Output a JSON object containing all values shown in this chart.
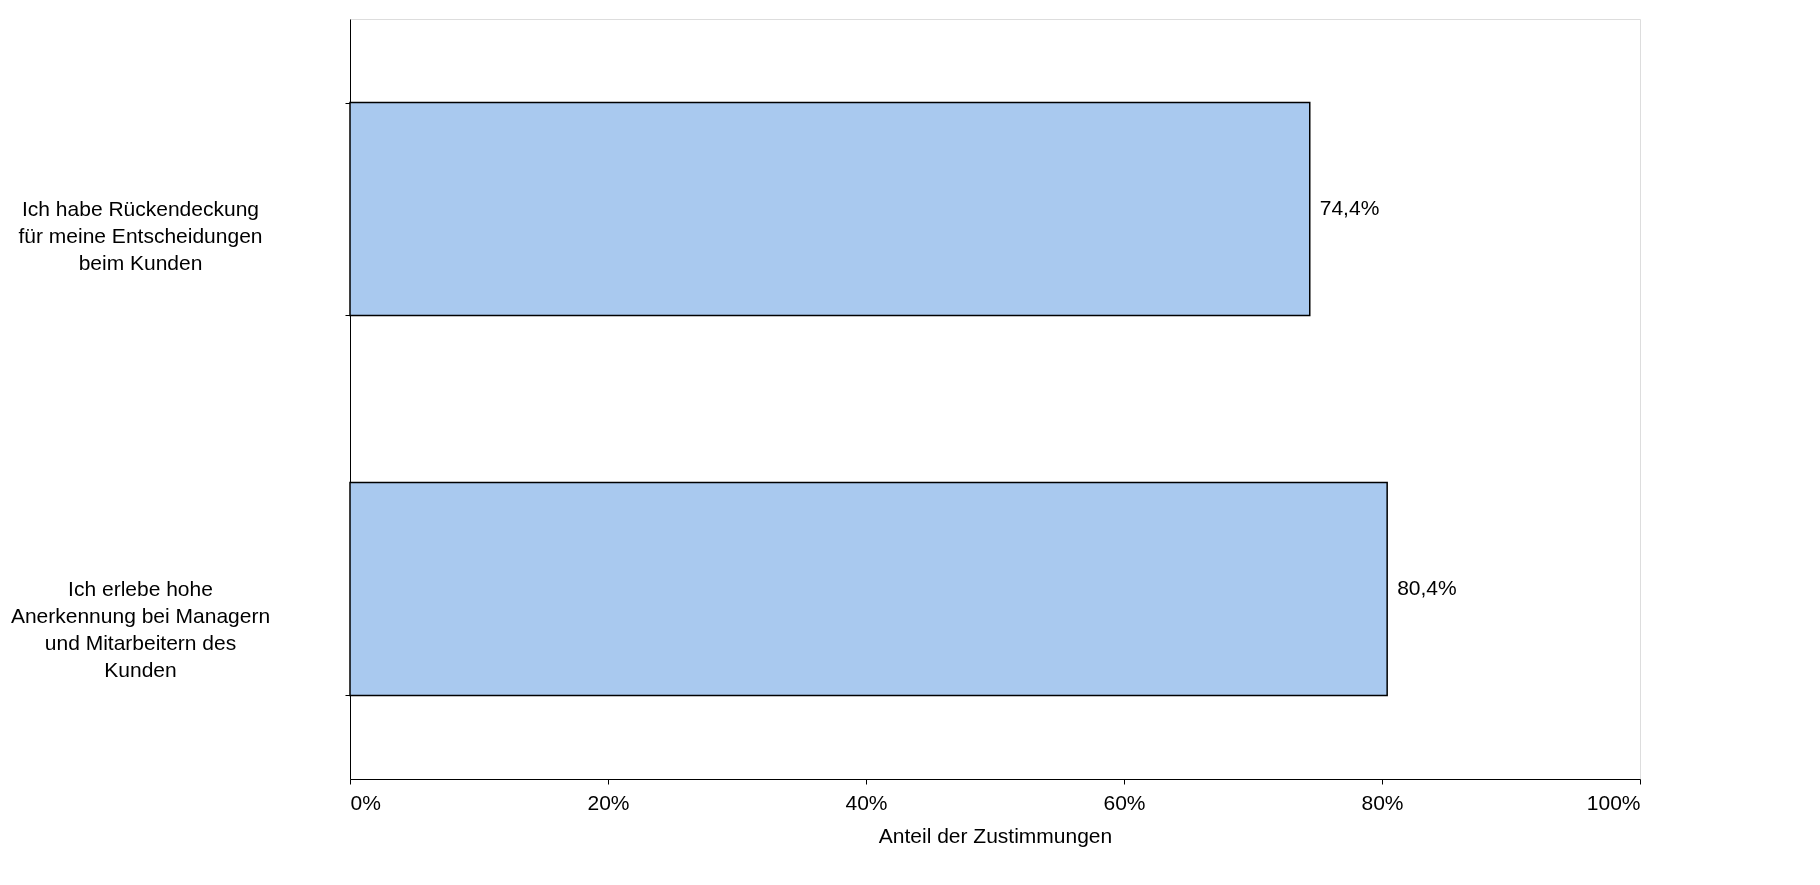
{
  "chart_data": {
    "type": "bar",
    "orientation": "horizontal",
    "xlabel": "Anteil der Zustimmungen",
    "categories": [
      "Ich habe Rückendeckung für meine Entscheidungen beim Kunden",
      "Ich erlebe hohe Anerkennung bei Managern und Mitarbeitern des Kunden"
    ],
    "values": [
      74.4,
      80.4
    ],
    "color": "#a9c9ef",
    "value_labels": [
      "74,4%",
      "80,4%"
    ],
    "xlim": [
      0,
      100
    ],
    "xticks": [
      {
        "value": 0,
        "label": "0%"
      },
      {
        "value": 20,
        "label": "20%"
      },
      {
        "value": 40,
        "label": "40%"
      },
      {
        "value": 60,
        "label": "60%"
      },
      {
        "value": 80,
        "label": "80%"
      },
      {
        "value": 100,
        "label": "100%"
      }
    ],
    "grid": false
  }
}
